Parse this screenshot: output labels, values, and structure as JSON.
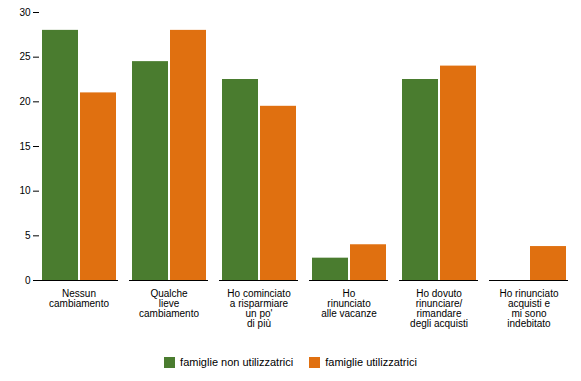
{
  "chart_data": {
    "type": "bar",
    "categories": [
      "Nessun\ncambiamento",
      "Qualche\nlieve\ncambiamento",
      "Ho cominciato\na risparmiare\nun po'\ndi più",
      "Ho\nrinunciato\nalle vacanze",
      "Ho dovuto\nrinunciare/\nrimandare\ndegli acquisti",
      "Ho rinunciato\nacquisti e\nmi sono\nindebitato"
    ],
    "series": [
      {
        "name": "famiglie non utilizzatrici",
        "color": "#4a7c2f",
        "values": [
          28,
          24.5,
          22.5,
          2.5,
          22.5,
          0
        ]
      },
      {
        "name": "famiglie utilizzatrici",
        "color": "#e07010",
        "values": [
          21,
          28,
          19.5,
          4,
          24,
          3.8
        ]
      }
    ],
    "ylim": [
      0,
      30
    ],
    "yticks": [
      0,
      5,
      10,
      15,
      20,
      25,
      30
    ],
    "grid": false,
    "legend": "bottom"
  }
}
